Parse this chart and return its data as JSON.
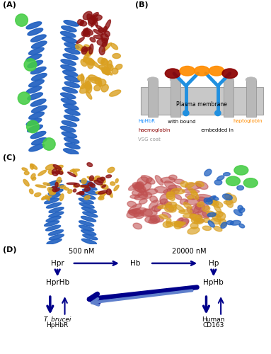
{
  "panel_A_label": "(A)",
  "panel_B_label": "(B)",
  "panel_C_label": "(C)",
  "panel_D_label": "(D)",
  "plasma_membrane_text": "Plasma membrane",
  "legend_hphbr_color": "#1E90FF",
  "legend_hphbr_text": "HpHbR",
  "legend_hphbr_suffix": " with bound ",
  "legend_haptoglobin_color": "#FF8C00",
  "legend_haptoglobin_text": "haptoglobin",
  "legend_haemoglobin_color": "#8B0000",
  "legend_haemoglobin_text": "haemoglobin",
  "legend_haemoglobin_suffix": " embedded in",
  "legend_vsg_color": "#999999",
  "legend_vsg_text": "VSG coat",
  "D_500nM": "500 nM",
  "D_20000nM": "20000 nM",
  "D_Hpr": "Hpr",
  "D_Hb": "Hb",
  "D_Hp": "Hp",
  "D_HprHb": "HprHb",
  "D_HpHb": "HpHb",
  "D_Tbrucei": "T. brucei",
  "D_HpHbR": "HpHbR",
  "D_Human": "Human",
  "D_CD163": "CD163",
  "arrow_color": "#00008B",
  "bg_color": "#FFFFFF",
  "blue_helix": "#2060C0",
  "green_blob": "#44CC44",
  "maroon_blob": "#8B1010",
  "gold_blob": "#DAA020",
  "membrane_fill": "#C8C8C8",
  "membrane_edge": "#A0A0A0",
  "pillar_fill": "#B8B8B8",
  "pillar_edge": "#909090",
  "receptor_blue": "#2090E0",
  "hap_orange": "#FF8C00",
  "hap_dark": "#8B0000"
}
